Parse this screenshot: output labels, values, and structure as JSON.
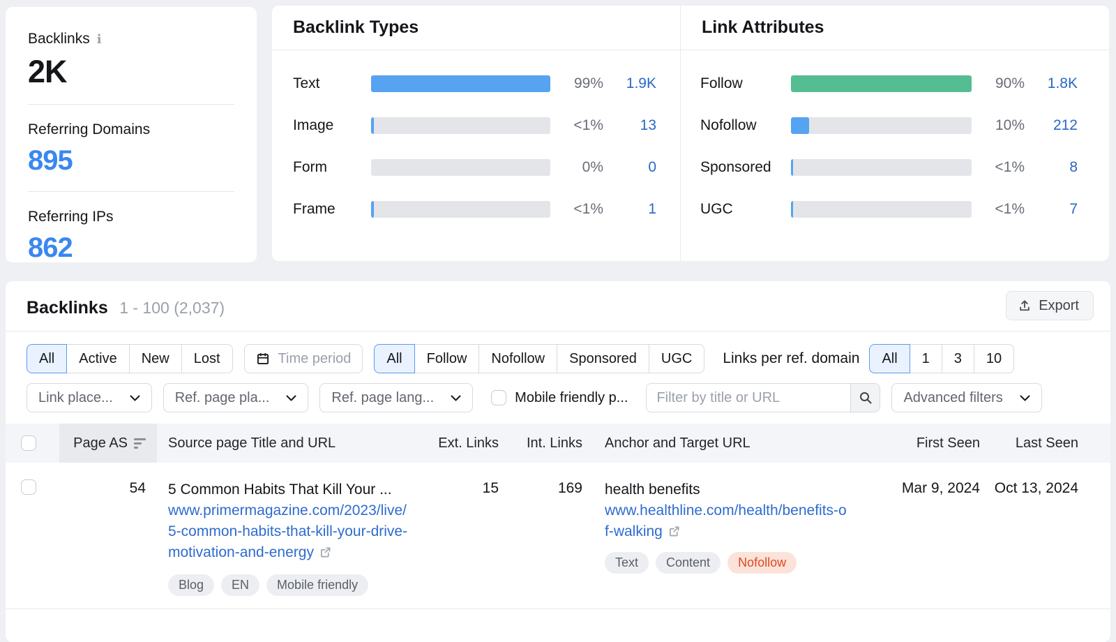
{
  "colors": {
    "bar_blue": "#55a3f1",
    "bar_green": "#55bd92",
    "link_blue": "#2e6bd0",
    "value_blue": "#2a67c5",
    "summary_blue": "#3a87f0",
    "nofollow_badge_bg": "#fbe3da",
    "nofollow_badge_text": "#dc4a21",
    "selected_segment_bg": "#e9f2fe",
    "selected_segment_border": "#5a9af0"
  },
  "summary": {
    "backlinks_label": "Backlinks",
    "backlinks_value": "2K",
    "referring_domains_label": "Referring Domains",
    "referring_domains_value": "895",
    "referring_ips_label": "Referring IPs",
    "referring_ips_value": "862",
    "info_icon": "i"
  },
  "chart_data": [
    {
      "type": "bar",
      "title": "Backlink Types",
      "categories": [
        "Text",
        "Image",
        "Form",
        "Frame"
      ],
      "values": [
        1900,
        13,
        0,
        1
      ],
      "pct_labels": [
        "99%",
        "<1%",
        "0%",
        "<1%"
      ],
      "value_labels": [
        "1.9K",
        "13",
        "0",
        "1"
      ]
    },
    {
      "type": "bar",
      "title": "Link Attributes",
      "categories": [
        "Follow",
        "Nofollow",
        "Sponsored",
        "UGC"
      ],
      "values": [
        1800,
        212,
        8,
        7
      ],
      "pct_labels": [
        "90%",
        "10%",
        "<1%",
        "<1%"
      ],
      "value_labels": [
        "1.8K",
        "212",
        "8",
        "7"
      ]
    }
  ],
  "backlink_types": {
    "title": "Backlink Types",
    "rows": [
      {
        "label": "Text",
        "pct": "99%",
        "value": "1.9K",
        "fill": 100,
        "color": "#55a3f1"
      },
      {
        "label": "Image",
        "pct": "<1%",
        "value": "13",
        "fill": 1.6,
        "color": "#55a3f1"
      },
      {
        "label": "Form",
        "pct": "0%",
        "value": "0",
        "fill": 0,
        "color": "#55a3f1"
      },
      {
        "label": "Frame",
        "pct": "<1%",
        "value": "1",
        "fill": 1.6,
        "color": "#55a3f1"
      }
    ]
  },
  "link_attributes": {
    "title": "Link Attributes",
    "rows": [
      {
        "label": "Follow",
        "pct": "90%",
        "value": "1.8K",
        "fill": 100,
        "color": "#55bd92"
      },
      {
        "label": "Nofollow",
        "pct": "10%",
        "value": "212",
        "fill": 10,
        "color": "#55a3f1"
      },
      {
        "label": "Sponsored",
        "pct": "<1%",
        "value": "8",
        "fill": 1.2,
        "color": "#55a3f1"
      },
      {
        "label": "UGC",
        "pct": "<1%",
        "value": "7",
        "fill": 1.2,
        "color": "#55a3f1"
      }
    ]
  },
  "section": {
    "title": "Backlinks",
    "count": "1 - 100 (2,037)",
    "export_label": "Export"
  },
  "filters": {
    "status_segments": [
      "All",
      "Active",
      "New",
      "Lost"
    ],
    "status_selected": "All",
    "time_period_label": "Time period",
    "attr_segments": [
      "All",
      "Follow",
      "Nofollow",
      "Sponsored",
      "UGC"
    ],
    "attr_selected": "All",
    "links_per_domain_label": "Links per ref. domain",
    "links_segments": [
      "All",
      "1",
      "3",
      "10"
    ],
    "links_selected": "All",
    "dropdown_link_placement": "Link place...",
    "dropdown_ref_page_placement": "Ref. page pla...",
    "dropdown_ref_page_language": "Ref. page lang...",
    "mobile_friendly_label": "Mobile friendly p...",
    "search_placeholder": "Filter by title or URL",
    "advanced_filters_label": "Advanced filters"
  },
  "table": {
    "columns": {
      "page_as": "Page AS",
      "source": "Source page Title and URL",
      "ext": "Ext. Links",
      "int": "Int. Links",
      "anchor": "Anchor and Target URL",
      "first_seen": "First Seen",
      "last_seen": "Last Seen"
    },
    "row": {
      "page_as": "54",
      "title": "5 Common Habits That Kill Your ...",
      "source_url": "www.primermagazine.com/2023/live/5-common-habits-that-kill-your-drive-motivation-and-energy",
      "ext_links": "15",
      "int_links": "169",
      "anchor": "health benefits",
      "target_url": "www.healthline.com/health/benefits-of-walking",
      "badges": [
        "Text",
        "Content",
        "Nofollow"
      ],
      "first_seen": "Mar 9, 2024",
      "last_seen": "Oct 13, 2024",
      "tags": [
        "Blog",
        "EN",
        "Mobile friendly"
      ]
    }
  }
}
